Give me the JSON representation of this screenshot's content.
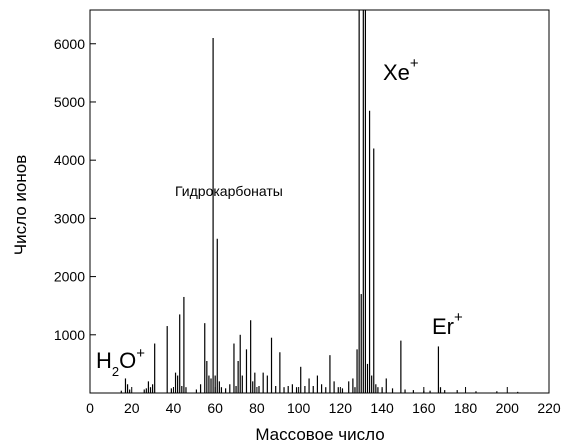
{
  "chart_data": {
    "type": "bar",
    "xlabel": "Массовое число",
    "ylabel": "Число ионов",
    "annotations": [
      {
        "parts": [
          "H",
          "2",
          "O",
          "+"
        ]
      },
      {
        "text": "Гидрокарбонаты"
      },
      {
        "parts": [
          "Xe",
          "+"
        ]
      },
      {
        "parts": [
          "Er",
          "+"
        ]
      }
    ],
    "color": "#000000",
    "x": [
      15,
      17,
      18,
      19,
      26,
      27,
      28,
      29,
      30,
      31,
      37,
      39,
      41,
      42,
      43,
      44,
      45,
      46,
      51,
      53,
      55,
      56,
      57,
      58,
      59,
      60,
      61,
      62,
      63,
      65,
      67,
      69,
      70,
      71,
      72,
      73,
      75,
      77,
      78,
      79,
      81,
      83,
      85,
      87,
      89,
      91,
      93,
      95,
      97,
      99,
      101,
      103,
      105,
      107,
      109,
      111,
      113,
      115,
      117,
      119,
      121,
      124,
      126,
      127,
      128,
      129,
      130,
      131,
      132,
      133,
      134,
      135,
      136,
      137,
      138,
      140,
      142,
      145,
      149,
      151,
      155,
      160,
      163,
      167,
      168,
      170,
      176,
      185,
      195,
      205
    ],
    "values": [
      40,
      250,
      150,
      60,
      60,
      80,
      200,
      100,
      150,
      850,
      1150,
      80,
      350,
      300,
      1350,
      120,
      1650,
      100,
      60,
      150,
      1200,
      550,
      300,
      250,
      6100,
      300,
      2650,
      200,
      100,
      80,
      150,
      850,
      120,
      550,
      1000,
      300,
      750,
      1250,
      200,
      350,
      120,
      350,
      300,
      950,
      120,
      700,
      100,
      120,
      150,
      100,
      450,
      120,
      250,
      120,
      300,
      150,
      100,
      650,
      200,
      100,
      80,
      200,
      250,
      100,
      750,
      6580,
      1700,
      6580,
      6580,
      500,
      4850,
      300,
      4200,
      150,
      100,
      80,
      250,
      80,
      900,
      60,
      50,
      40,
      40,
      800,
      100,
      50,
      50,
      30,
      30,
      20
    ],
    "xlim": [
      0,
      220
    ],
    "xticks": [
      0,
      20,
      40,
      60,
      80,
      100,
      120,
      140,
      160,
      180,
      200,
      220
    ],
    "ylim": [
      0,
      6580
    ],
    "yticks": [
      1000,
      2000,
      3000,
      4000,
      5000,
      6000
    ]
  }
}
